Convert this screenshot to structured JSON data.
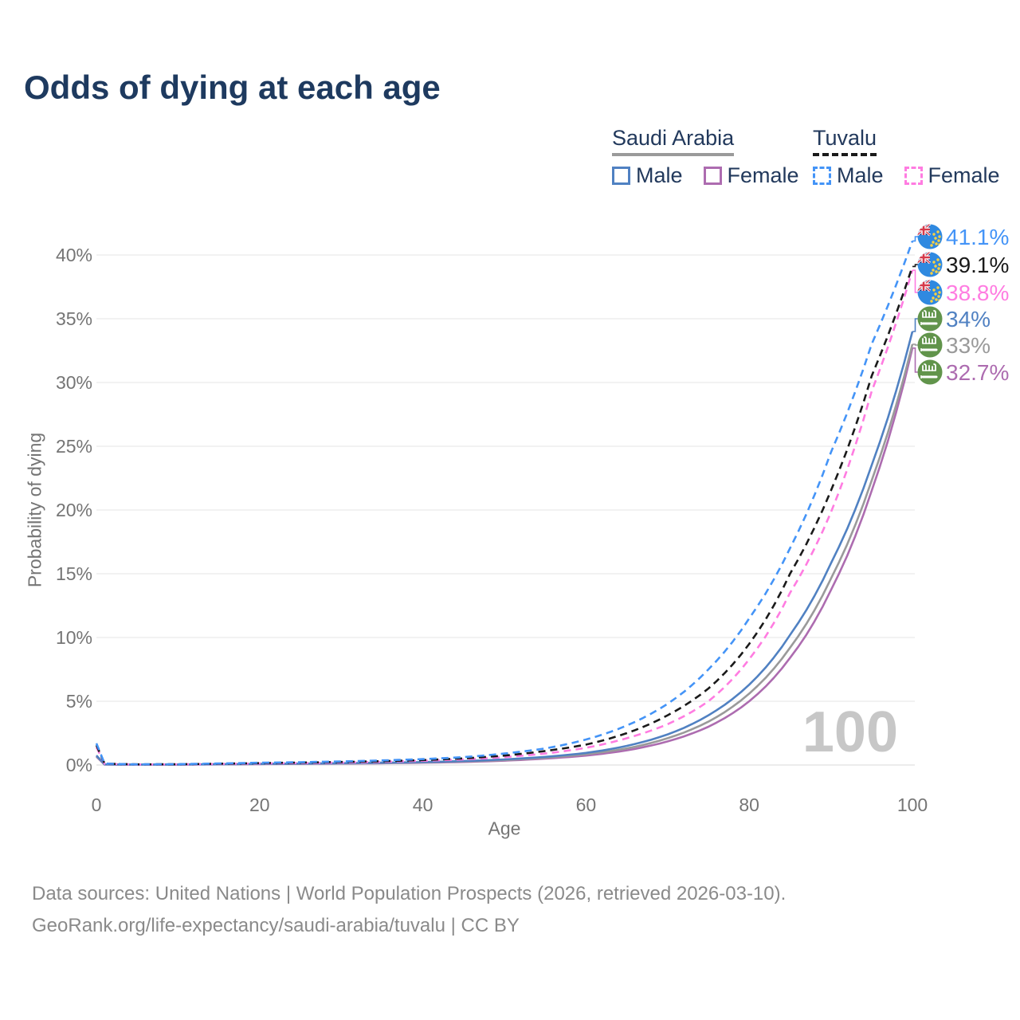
{
  "title": "Odds of dying at each age",
  "watermark": "100",
  "legend": {
    "groups": [
      {
        "name": "Saudi Arabia",
        "line_style": "solid",
        "underline_color": "#9a9a9a",
        "items": [
          {
            "label": "Male",
            "color": "#5081c2"
          },
          {
            "label": "Female",
            "color": "#ad6cb0"
          }
        ]
      },
      {
        "name": "Tuvalu",
        "line_style": "dashed",
        "underline_color": "#1a1a1a",
        "items": [
          {
            "label": "Male",
            "color": "#4494f7"
          },
          {
            "label": "Female",
            "color": "#ff7ce1"
          }
        ]
      }
    ]
  },
  "footer": {
    "line1": "Data sources: United Nations | World Population Prospects (2026, retrieved 2026-03-10).",
    "line2": "GeoRank.org/life-expectancy/saudi-arabia/tuvalu | CC BY"
  },
  "chart_data": {
    "type": "line",
    "title": "Odds of dying at each age",
    "xlabel": "Age",
    "ylabel": "Probability of dying",
    "unit": "percent",
    "xlim": [
      0,
      100
    ],
    "ylim": [
      0,
      42
    ],
    "grid": true,
    "legend_position": "top-right",
    "x_ticks": [
      0,
      20,
      40,
      60,
      80,
      100
    ],
    "y_tick_values": [
      0,
      5,
      10,
      15,
      20,
      25,
      30,
      35,
      40
    ],
    "y_tick_labels": [
      "0%",
      "5%",
      "10%",
      "15%",
      "20%",
      "25%",
      "30%",
      "35%",
      "40%"
    ],
    "x": [
      0,
      1,
      5,
      10,
      15,
      20,
      25,
      30,
      35,
      40,
      45,
      50,
      55,
      60,
      65,
      70,
      75,
      80,
      85,
      90,
      95,
      100
    ],
    "series": [
      {
        "name": "Tuvalu Male",
        "country": "Tuvalu",
        "sex": "Male",
        "style": "dashed",
        "color": "#4494f7",
        "flag": "tuvalu",
        "end_label": "41.1%",
        "values": [
          1.7,
          0.12,
          0.05,
          0.07,
          0.12,
          0.18,
          0.22,
          0.28,
          0.36,
          0.46,
          0.62,
          0.9,
          1.3,
          2.0,
          3.1,
          4.8,
          7.5,
          11.5,
          17.0,
          24.5,
          33.0,
          41.1
        ]
      },
      {
        "name": "Tuvalu",
        "country": "Tuvalu",
        "sex": "Both",
        "style": "dashed",
        "color": "#1a1a1a",
        "flag": "tuvalu",
        "end_label": "39.1%",
        "values": [
          1.55,
          0.11,
          0.05,
          0.06,
          0.1,
          0.15,
          0.19,
          0.24,
          0.3,
          0.39,
          0.52,
          0.74,
          1.1,
          1.6,
          2.5,
          3.9,
          6.0,
          9.5,
          15.0,
          21.5,
          30.5,
          39.1
        ]
      },
      {
        "name": "Tuvalu Female",
        "country": "Tuvalu",
        "sex": "Female",
        "style": "dashed",
        "color": "#ff7ce1",
        "flag": "tuvalu",
        "end_label": "38.8%",
        "values": [
          1.4,
          0.1,
          0.04,
          0.05,
          0.08,
          0.12,
          0.15,
          0.19,
          0.25,
          0.33,
          0.44,
          0.62,
          0.9,
          1.35,
          2.1,
          3.2,
          5.0,
          8.3,
          13.5,
          19.8,
          29.3,
          38.8
        ]
      },
      {
        "name": "Saudi Arabia Male",
        "country": "Saudi Arabia",
        "sex": "Male",
        "style": "solid",
        "color": "#5081c2",
        "flag": "saudi-arabia",
        "end_label": "34%",
        "values": [
          0.75,
          0.05,
          0.03,
          0.04,
          0.06,
          0.09,
          0.11,
          0.14,
          0.18,
          0.23,
          0.31,
          0.44,
          0.64,
          0.95,
          1.5,
          2.4,
          3.9,
          6.3,
          10.2,
          15.8,
          23.5,
          34.0
        ]
      },
      {
        "name": "Saudi Arabia",
        "country": "Saudi Arabia",
        "sex": "Both",
        "style": "solid",
        "color": "#9a9a9a",
        "flag": "saudi-arabia",
        "end_label": "33%",
        "values": [
          0.7,
          0.05,
          0.03,
          0.04,
          0.06,
          0.08,
          0.1,
          0.13,
          0.16,
          0.21,
          0.28,
          0.39,
          0.57,
          0.85,
          1.3,
          2.1,
          3.4,
          5.6,
          9.2,
          14.6,
          22.3,
          33.0
        ]
      },
      {
        "name": "Saudi Arabia Female",
        "country": "Saudi Arabia",
        "sex": "Female",
        "style": "solid",
        "color": "#ad6cb0",
        "flag": "saudi-arabia",
        "end_label": "32.7%",
        "values": [
          0.65,
          0.04,
          0.03,
          0.03,
          0.05,
          0.07,
          0.09,
          0.11,
          0.14,
          0.18,
          0.24,
          0.34,
          0.5,
          0.74,
          1.15,
          1.85,
          3.0,
          5.0,
          8.4,
          13.7,
          21.5,
          32.7
        ]
      }
    ]
  }
}
